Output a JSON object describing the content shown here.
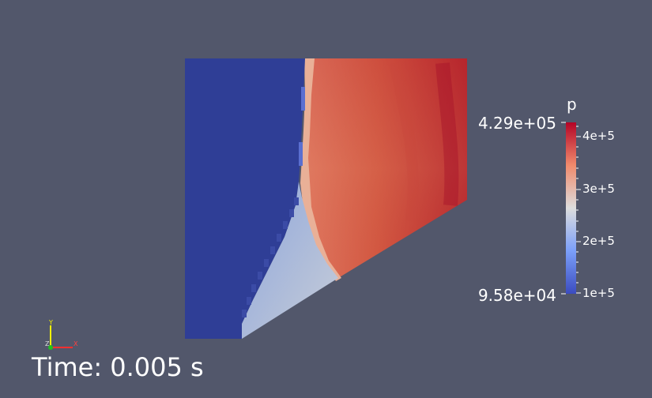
{
  "legend": {
    "title": "p",
    "range_max": "4.29e+05",
    "range_min": "9.58e+04",
    "ticks": [
      "4e+5",
      "3e+5",
      "2e+5",
      "1e+5"
    ],
    "colormap": [
      "#3b4cc0",
      "#dddddd",
      "#b40426"
    ]
  },
  "time_annotation": "Time: 0.005 s",
  "orientation_axes": {
    "x": "X",
    "y": "Y",
    "z": "Z"
  },
  "colors": {
    "background": "#52576b",
    "low": "#2e3d94",
    "high": "#b40426"
  }
}
